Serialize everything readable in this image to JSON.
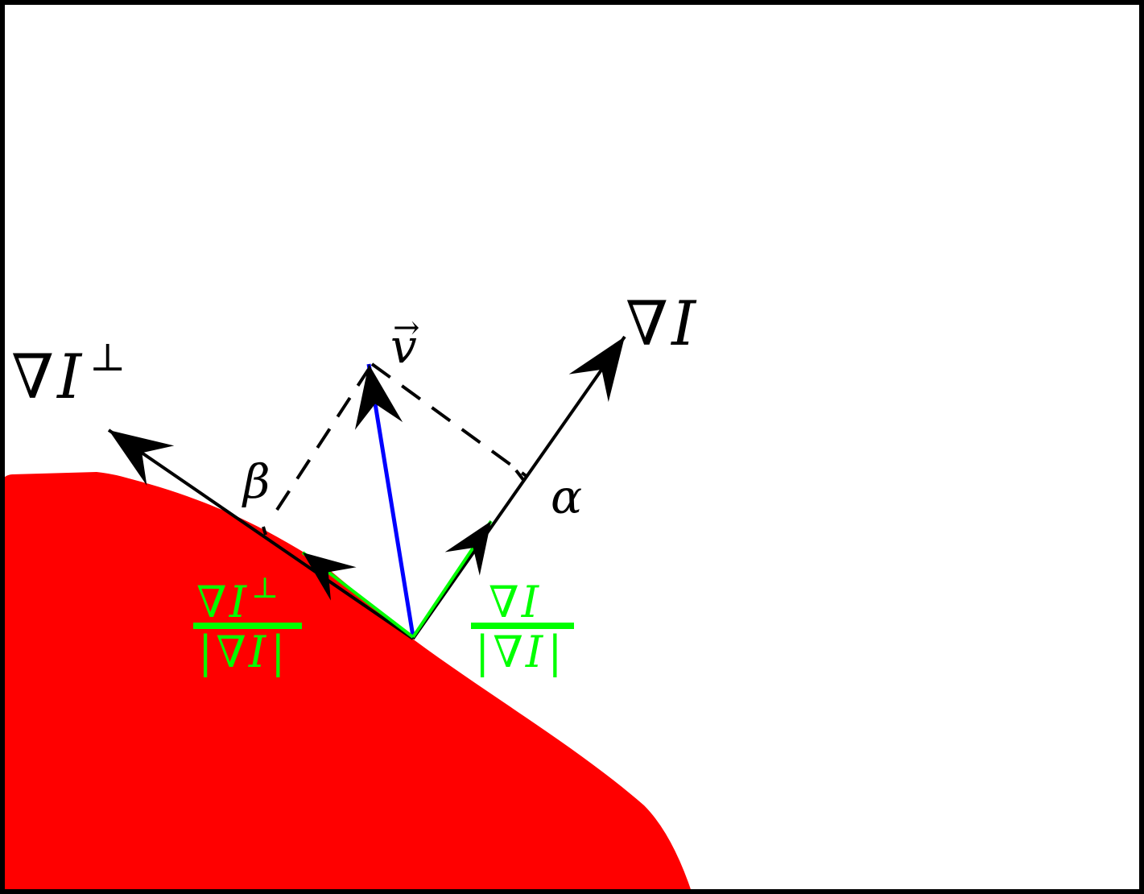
{
  "colors": {
    "background": "#ffffff",
    "frame": "#000000",
    "region": "#ff0000",
    "vector": "#000000",
    "velocity": "#0000ff",
    "unit_vector": "#00ff00",
    "projection_lines": "#000000"
  },
  "labels": {
    "grad_i": {
      "nabla": "∇",
      "var": "I"
    },
    "grad_i_perp": {
      "nabla": "∇",
      "var": "I",
      "sup": "⊥"
    },
    "velocity": {
      "var": "v",
      "accent": "→"
    },
    "alpha": "α",
    "beta": "β",
    "unit_grad": {
      "num_nabla": "∇",
      "num_var": "I",
      "den_bar_left": "|",
      "den_nabla": "∇",
      "den_var": "I",
      "den_bar_right": "|"
    },
    "unit_grad_perp": {
      "num_nabla": "∇",
      "num_var": "I",
      "num_sup": "⊥",
      "den_bar_left": "|",
      "den_nabla": "∇",
      "den_var": "I",
      "den_bar_right": "|"
    }
  }
}
